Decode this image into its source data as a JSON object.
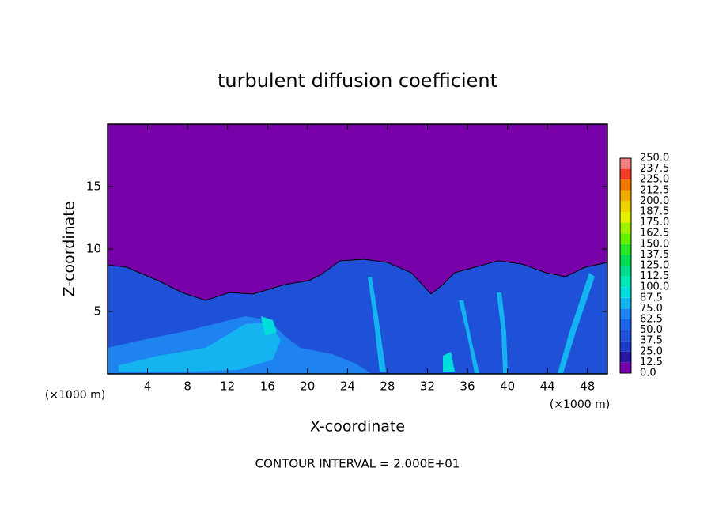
{
  "chart_data": {
    "type": "contour",
    "title": "turbulent diffusion coefficient",
    "x_label": "X-coordinate",
    "y_label": "Z-coordinate",
    "x_unit_labels": [
      "(×1000 m)",
      "(×1000 m)"
    ],
    "footer": "CONTOUR INTERVAL = 2.000E+01",
    "xlim": [
      0,
      50
    ],
    "xticks": [
      4,
      8,
      12,
      16,
      20,
      24,
      28,
      32,
      36,
      40,
      44,
      48
    ],
    "ylim": [
      0,
      20
    ],
    "yticks": [
      5,
      10,
      15
    ],
    "colorbar": {
      "levels": [
        {
          "value": 0,
          "label": "0.0"
        },
        12.5,
        {
          "value": 25,
          "label": "25.0"
        },
        37.5,
        {
          "value": 50,
          "label": "50.0"
        },
        62.5,
        {
          "value": 75,
          "label": "75.0"
        },
        87.5,
        {
          "value": 100,
          "label": "100.0"
        },
        112.5,
        {
          "value": 125,
          "label": "125.0"
        },
        137.5,
        {
          "value": 150,
          "label": "150.0"
        },
        162.5,
        {
          "value": 175,
          "label": "175.0"
        },
        187.5,
        {
          "value": 200,
          "label": "200.0"
        },
        212.5,
        {
          "value": 225,
          "label": "225.0"
        },
        237.5,
        {
          "value": 250,
          "label": "250.0"
        }
      ],
      "colors": [
        "#7800a8",
        "#2818a0",
        "#1c3cc8",
        "#1e50d8",
        "#1e64e6",
        "#1e82f0",
        "#14b4f0",
        "#00dcdc",
        "#00e6b4",
        "#00dc8c",
        "#00dc50",
        "#28e628",
        "#64f000",
        "#a0f000",
        "#e6f000",
        "#f0d200",
        "#f0aa00",
        "#f07800",
        "#f03c28",
        "#f08080"
      ]
    }
  }
}
